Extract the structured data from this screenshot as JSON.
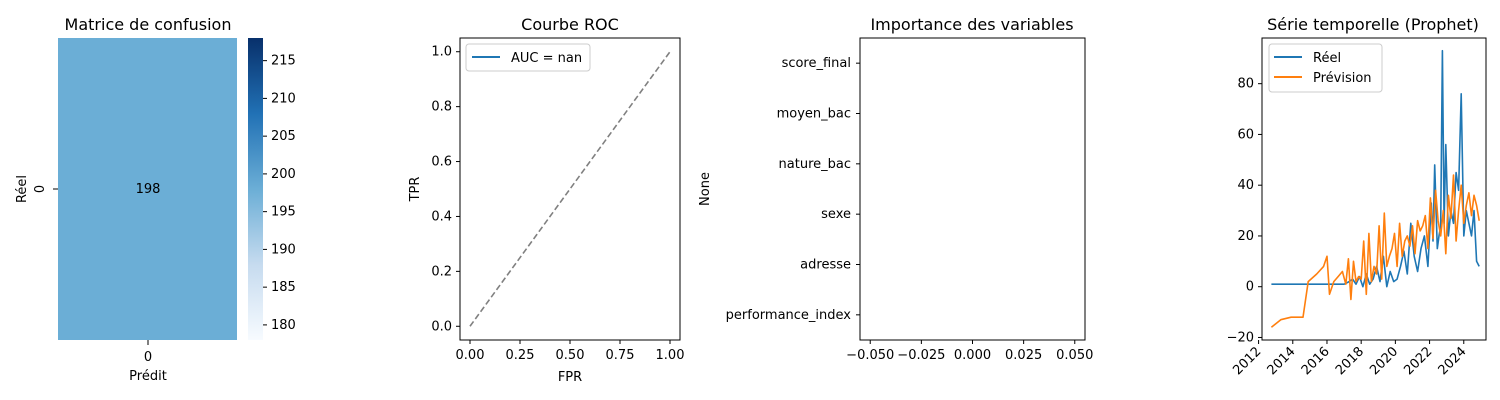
{
  "chart_data": [
    {
      "type": "heatmap",
      "title": "Matrice de confusion",
      "xlabel": "Prédit",
      "ylabel": "Réel",
      "x_categories": [
        "0"
      ],
      "y_categories": [
        "0"
      ],
      "values": [
        [
          198
        ]
      ],
      "colorbar": {
        "ticks": [
          180,
          185,
          190,
          195,
          200,
          205,
          210,
          215
        ],
        "range": [
          178,
          218
        ],
        "colormap": "Blues"
      },
      "colors": {
        "cell": "#6baed6",
        "low": "#f7fbff",
        "high": "#08306b",
        "annot": "#ffffff"
      }
    },
    {
      "type": "line",
      "title": "Courbe ROC",
      "xlabel": "FPR",
      "ylabel": "TPR",
      "xlim": [
        -0.05,
        1.05
      ],
      "ylim": [
        -0.05,
        1.05
      ],
      "xticks": [
        "0.00",
        "0.25",
        "0.50",
        "0.75",
        "1.00"
      ],
      "yticks": [
        "0.0",
        "0.2",
        "0.4",
        "0.6",
        "0.8",
        "1.0"
      ],
      "series": [
        {
          "name": "AUC = nan",
          "x": [],
          "y": [],
          "color": "#1f77b4"
        },
        {
          "x": [
            0,
            1
          ],
          "y": [
            0,
            1
          ],
          "color": "#808080",
          "dashed": true
        }
      ],
      "legend": "top-left"
    },
    {
      "type": "bar",
      "title": "Importance des variables",
      "ylabel": "None",
      "categories": [
        "score_final",
        "moyen_bac",
        "nature_bac",
        "sexe",
        "adresse",
        "performance_index"
      ],
      "values": [
        null,
        null,
        null,
        null,
        null,
        null
      ],
      "xticks": [
        "−0.050",
        "−0.025",
        "0.000",
        "0.025",
        "0.050"
      ],
      "xlim": [
        -0.055,
        0.055
      ]
    },
    {
      "type": "line",
      "title": "Série temporelle (Prophet)",
      "xticks": [
        "2012",
        "2014",
        "2016",
        "2018",
        "2020",
        "2022",
        "2024"
      ],
      "yticks": [
        "−20",
        "0",
        "20",
        "40",
        "60",
        "80"
      ],
      "xlim": [
        2012.2,
        2025.3
      ],
      "ylim": [
        -21,
        98
      ],
      "legend": "top-left",
      "series": [
        {
          "name": "Réel",
          "color": "#1f77b4",
          "x": [
            2012.75,
            2014.9,
            2015.5,
            2016.0,
            2016.5,
            2017.0,
            2017.3,
            2017.5,
            2017.7,
            2017.9,
            2018.1,
            2018.3,
            2018.5,
            2018.7,
            2018.9,
            2019.1,
            2019.3,
            2019.5,
            2019.7,
            2019.9,
            2020.1,
            2020.3,
            2020.5,
            2020.7,
            2020.9,
            2021.1,
            2021.3,
            2021.5,
            2021.7,
            2021.9,
            2022.1,
            2022.2,
            2022.3,
            2022.45,
            2022.55,
            2022.65,
            2022.75,
            2022.85,
            2022.95,
            2023.1,
            2023.25,
            2023.4,
            2023.55,
            2023.7,
            2023.85,
            2024.0,
            2024.15,
            2024.3,
            2024.45,
            2024.6,
            2024.75,
            2024.9
          ],
          "y": [
            1,
            1,
            1,
            1,
            1,
            1,
            2,
            3,
            1,
            4,
            0,
            5,
            1,
            3,
            8,
            2,
            12,
            0,
            6,
            2,
            3,
            8,
            14,
            5,
            25,
            12,
            6,
            15,
            20,
            8,
            33,
            18,
            48,
            15,
            20,
            24,
            93,
            25,
            56,
            20,
            30,
            25,
            45,
            38,
            76,
            20,
            30,
            25,
            20,
            30,
            10,
            8
          ]
        },
        {
          "name": "Prévision",
          "color": "#ff7f0e",
          "x": [
            2012.75,
            2013.3,
            2013.9,
            2014.6,
            2014.9,
            2015.4,
            2015.8,
            2016.0,
            2016.15,
            2016.4,
            2016.65,
            2016.9,
            2017.1,
            2017.25,
            2017.4,
            2017.55,
            2017.7,
            2017.85,
            2018.0,
            2018.15,
            2018.3,
            2018.45,
            2018.6,
            2018.75,
            2018.9,
            2019.05,
            2019.2,
            2019.35,
            2019.5,
            2019.65,
            2019.8,
            2019.95,
            2020.1,
            2020.25,
            2020.4,
            2020.55,
            2020.7,
            2020.85,
            2021.0,
            2021.15,
            2021.3,
            2021.45,
            2021.6,
            2021.75,
            2021.9,
            2022.05,
            2022.2,
            2022.35,
            2022.5,
            2022.65,
            2022.8,
            2022.95,
            2023.1,
            2023.25,
            2023.4,
            2023.55,
            2023.7,
            2023.85,
            2024.0,
            2024.15,
            2024.3,
            2024.45,
            2024.6,
            2024.75,
            2024.9
          ],
          "y": [
            -16,
            -13,
            -12,
            -12,
            2,
            5,
            8,
            12,
            -3,
            2,
            4,
            6,
            1,
            11,
            -5,
            10,
            2,
            4,
            3,
            18,
            -3,
            21,
            2,
            8,
            5,
            24,
            3,
            29,
            8,
            12,
            15,
            21,
            8,
            25,
            12,
            18,
            20,
            16,
            24,
            13,
            26,
            22,
            24,
            28,
            15,
            35,
            19,
            38,
            26,
            20,
            30,
            13,
            36,
            27,
            44,
            18,
            30,
            40,
            25,
            32,
            37,
            28,
            36,
            32,
            26
          ]
        }
      ]
    }
  ]
}
